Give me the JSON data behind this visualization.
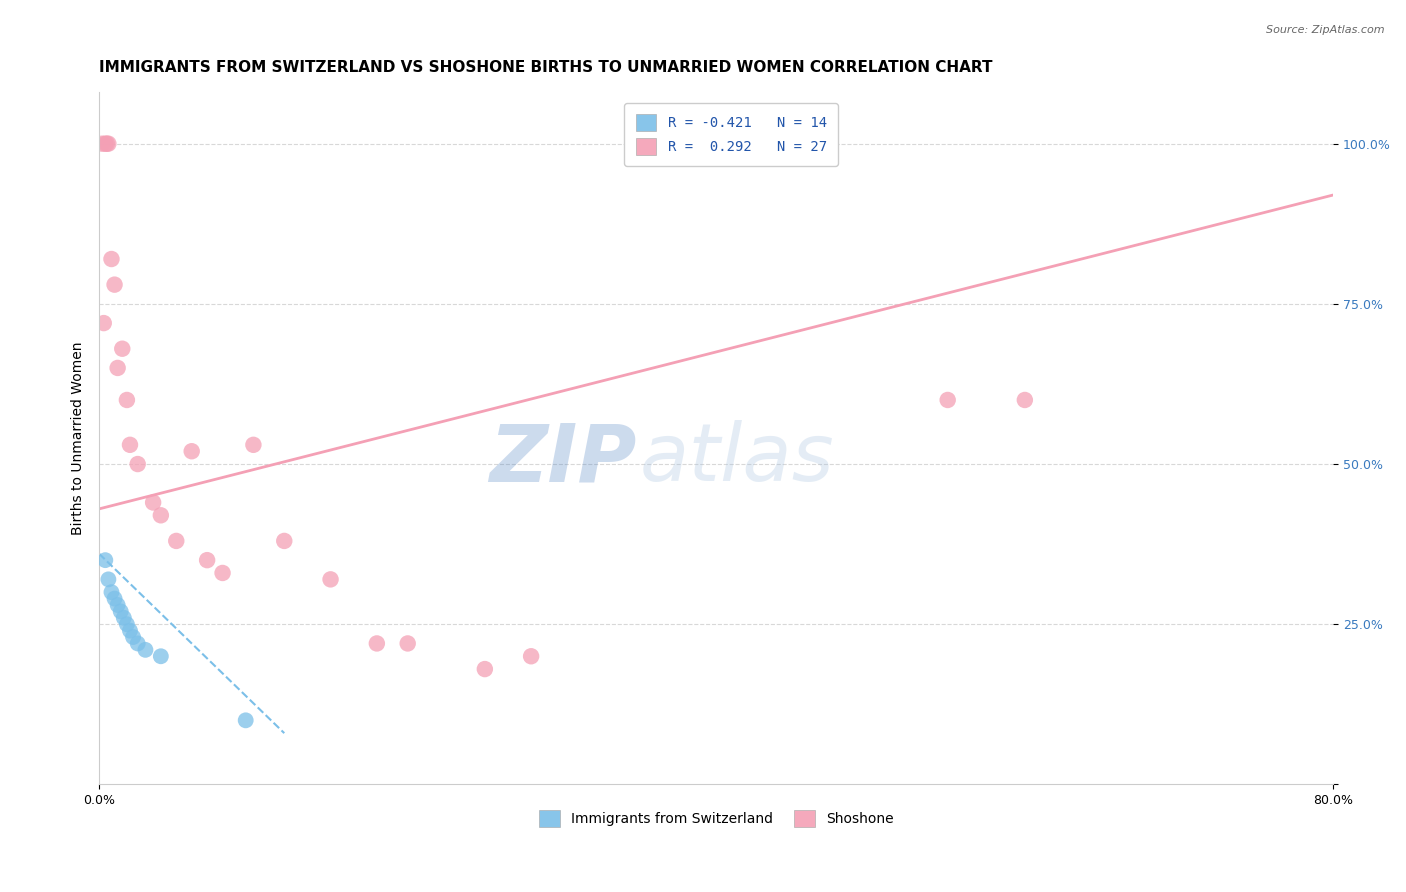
{
  "title": "IMMIGRANTS FROM SWITZERLAND VS SHOSHONE BIRTHS TO UNMARRIED WOMEN CORRELATION CHART",
  "source_text": "Source: ZipAtlas.com",
  "ylabel": "Births to Unmarried Women",
  "xmin": 0.0,
  "xmax": 80.0,
  "ymin": 0.0,
  "ymax": 108.0,
  "yticks": [
    0,
    25,
    50,
    75,
    100
  ],
  "ytick_labels": [
    "",
    "25.0%",
    "50.0%",
    "75.0%",
    "100.0%"
  ],
  "series1_name": "Immigrants from Switzerland",
  "series1_color": "#7bbfe8",
  "series1_R": -0.421,
  "series1_N": 14,
  "series1_scatter_x": [
    0.4,
    0.6,
    0.8,
    1.0,
    1.2,
    1.4,
    1.6,
    1.8,
    2.0,
    2.2,
    2.5,
    3.0,
    4.0,
    9.5
  ],
  "series1_scatter_y": [
    35,
    32,
    30,
    29,
    28,
    27,
    26,
    25,
    24,
    23,
    22,
    21,
    20,
    10
  ],
  "series1_trend_x": [
    0.0,
    12.0
  ],
  "series1_trend_y": [
    36,
    8
  ],
  "series2_name": "Shoshone",
  "series2_color": "#f4a0b5",
  "series2_R": 0.292,
  "series2_N": 27,
  "series2_scatter_x": [
    0.2,
    0.4,
    0.5,
    0.6,
    0.8,
    1.0,
    1.5,
    2.0,
    2.5,
    3.5,
    5.0,
    6.0,
    8.0,
    10.0,
    12.0,
    15.0,
    20.0,
    25.0,
    55.0,
    60.0,
    0.3,
    1.2,
    1.8,
    4.0,
    7.0,
    18.0,
    28.0
  ],
  "series2_scatter_y": [
    100,
    100,
    100,
    100,
    82,
    78,
    68,
    53,
    50,
    44,
    38,
    52,
    33,
    53,
    38,
    32,
    22,
    18,
    60,
    60,
    72,
    65,
    60,
    42,
    35,
    22,
    20
  ],
  "series2_trend_x": [
    0.0,
    80.0
  ],
  "series2_trend_y": [
    43,
    92
  ],
  "grid_color": "#d8d8d8",
  "legend_R1": "R = -0.421",
  "legend_N1": "N = 14",
  "legend_R2": "R =  0.292",
  "legend_N2": "N = 27",
  "title_fontsize": 11,
  "axis_label_fontsize": 10,
  "tick_fontsize": 9,
  "legend_fontsize": 10
}
